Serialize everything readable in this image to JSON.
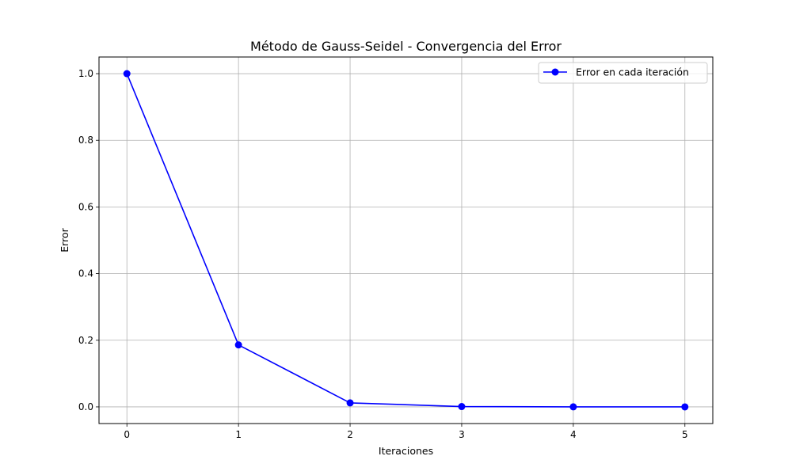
{
  "chart_data": {
    "type": "line",
    "title": "Método de Gauss-Seidel - Convergencia del Error",
    "xlabel": "Iteraciones",
    "ylabel": "Error",
    "x": [
      0,
      1,
      2,
      3,
      4,
      5
    ],
    "xticks": [
      "0",
      "1",
      "2",
      "3",
      "4",
      "5"
    ],
    "yticks": [
      "0.0",
      "0.2",
      "0.4",
      "0.6",
      "0.8",
      "1.0"
    ],
    "xlim": [
      -0.25,
      5.25
    ],
    "ylim": [
      -0.05,
      1.05
    ],
    "grid": true,
    "legend_position": "top-right",
    "series": [
      {
        "name": "Error en cada iteración",
        "color": "#0000ff",
        "marker": "circle",
        "values": [
          1.0,
          0.186,
          0.012,
          0.001,
          0.0001,
          0.0
        ]
      }
    ]
  }
}
